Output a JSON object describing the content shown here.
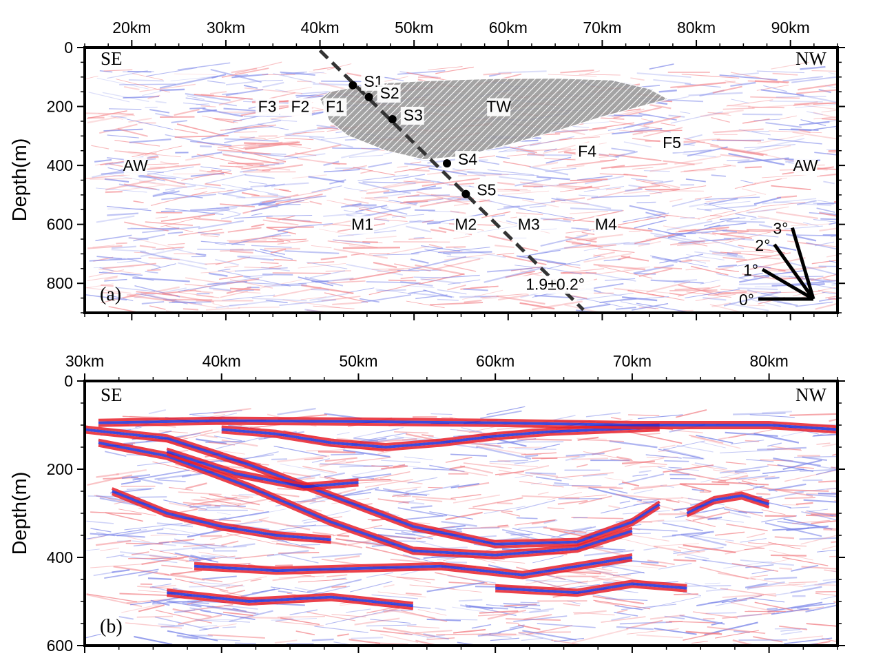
{
  "chart_data": [
    {
      "type": "heatmap",
      "panel_label": "(a)",
      "xlim": [
        15,
        95
      ],
      "ylim": [
        0,
        900
      ],
      "x_ticks": [
        20,
        30,
        40,
        50,
        60,
        70,
        80,
        90
      ],
      "x_tick_labels": [
        "20km",
        "30km",
        "40km",
        "50km",
        "60km",
        "70km",
        "80km",
        "90km"
      ],
      "y_ticks": [
        0,
        200,
        400,
        600,
        800
      ],
      "y_tick_labels": [
        "0",
        "200",
        "400",
        "600",
        "800"
      ],
      "ylabel": "Depth(m)",
      "left_corner_label": "SE",
      "right_corner_label": "NW",
      "colors": {
        "positive": "#e8202a",
        "negative": "#1a2cd8",
        "background": "#ffffff"
      },
      "tw_region": {
        "label": "TW",
        "label_pos": [
          59,
          200
        ],
        "polygon": [
          [
            40,
            175
          ],
          [
            41,
            150
          ],
          [
            44,
            132
          ],
          [
            47,
            120
          ],
          [
            52,
            112
          ],
          [
            58,
            106
          ],
          [
            65,
            104
          ],
          [
            71,
            110
          ],
          [
            75,
            140
          ],
          [
            77,
            175
          ],
          [
            70,
            235
          ],
          [
            66,
            275
          ],
          [
            60,
            330
          ],
          [
            55,
            370
          ],
          [
            51,
            380
          ],
          [
            47,
            350
          ],
          [
            43,
            300
          ],
          [
            41,
            250
          ]
        ]
      },
      "dip_line": {
        "x": [
          40,
          68
        ],
        "y": [
          10,
          890
        ],
        "label": "1.9±0.2°",
        "label_pos": [
          65,
          803
        ]
      },
      "points": [
        {
          "label": "S1",
          "x": 43.5,
          "y": 128
        },
        {
          "label": "S2",
          "x": 45.2,
          "y": 168
        },
        {
          "label": "S3",
          "x": 47.7,
          "y": 243
        },
        {
          "label": "S4",
          "x": 53.5,
          "y": 393
        },
        {
          "label": "S5",
          "x": 55.5,
          "y": 497
        }
      ],
      "text_labels": [
        {
          "text": "F3",
          "x": 34.4,
          "y": 200
        },
        {
          "text": "F2",
          "x": 37.9,
          "y": 200
        },
        {
          "text": "F1",
          "x": 41.6,
          "y": 200
        },
        {
          "text": "F4",
          "x": 68.4,
          "y": 352
        },
        {
          "text": "F5",
          "x": 77.4,
          "y": 323
        },
        {
          "text": "AW",
          "x": 20.4,
          "y": 400
        },
        {
          "text": "AW",
          "x": 91.6,
          "y": 400
        },
        {
          "text": "M1",
          "x": 44.5,
          "y": 600
        },
        {
          "text": "M2",
          "x": 55.5,
          "y": 600
        },
        {
          "text": "M3",
          "x": 62.2,
          "y": 600
        },
        {
          "text": "M4",
          "x": 70.4,
          "y": 600
        }
      ],
      "angle_key": {
        "labels": [
          "0°",
          "1°",
          "2°",
          "3°"
        ],
        "angles_deg": [
          0,
          1,
          2,
          3
        ]
      }
    },
    {
      "type": "heatmap",
      "panel_label": "(b)",
      "xlim": [
        30,
        85
      ],
      "ylim": [
        0,
        600
      ],
      "x_ticks": [
        30,
        40,
        50,
        60,
        70,
        80
      ],
      "x_tick_labels": [
        "30km",
        "40km",
        "50km",
        "60km",
        "70km",
        "80km"
      ],
      "y_ticks": [
        0,
        200,
        400,
        600
      ],
      "y_tick_labels": [
        "0",
        "200",
        "400",
        "600"
      ],
      "ylabel": "Depth(m)",
      "left_corner_label": "SE",
      "right_corner_label": "NW",
      "colors": {
        "positive": "#e8202a",
        "negative": "#1a2cd8",
        "background": "#ffffff"
      },
      "reflectors": [
        {
          "x": [
            30,
            36,
            42,
            48,
            54,
            60,
            66,
            70,
            72
          ],
          "y": [
            110,
            130,
            190,
            260,
            330,
            370,
            365,
            320,
            280
          ]
        },
        {
          "x": [
            31,
            36,
            42,
            48,
            54,
            60,
            66,
            70
          ],
          "y": [
            140,
            170,
            240,
            320,
            385,
            395,
            380,
            340
          ]
        },
        {
          "x": [
            40,
            44,
            48,
            52,
            56,
            60,
            64,
            68,
            72
          ],
          "y": [
            110,
            120,
            140,
            150,
            140,
            125,
            115,
            110,
            105
          ]
        },
        {
          "x": [
            36,
            41,
            46,
            50
          ],
          "y": [
            160,
            210,
            240,
            230
          ]
        },
        {
          "x": [
            32,
            36,
            40,
            44,
            48
          ],
          "y": [
            250,
            300,
            330,
            350,
            360
          ]
        },
        {
          "x": [
            74,
            76,
            78,
            80
          ],
          "y": [
            300,
            270,
            260,
            280
          ]
        },
        {
          "x": [
            31,
            40,
            50,
            60,
            70,
            80,
            85
          ],
          "y": [
            95,
            90,
            92,
            95,
            100,
            100,
            110
          ]
        },
        {
          "x": [
            38,
            44,
            50,
            56,
            62,
            66,
            70
          ],
          "y": [
            420,
            430,
            425,
            420,
            440,
            420,
            400
          ]
        },
        {
          "x": [
            36,
            42,
            48,
            54
          ],
          "y": [
            480,
            500,
            490,
            510
          ]
        },
        {
          "x": [
            60,
            66,
            70,
            74
          ],
          "y": [
            470,
            480,
            460,
            470
          ]
        }
      ]
    }
  ]
}
